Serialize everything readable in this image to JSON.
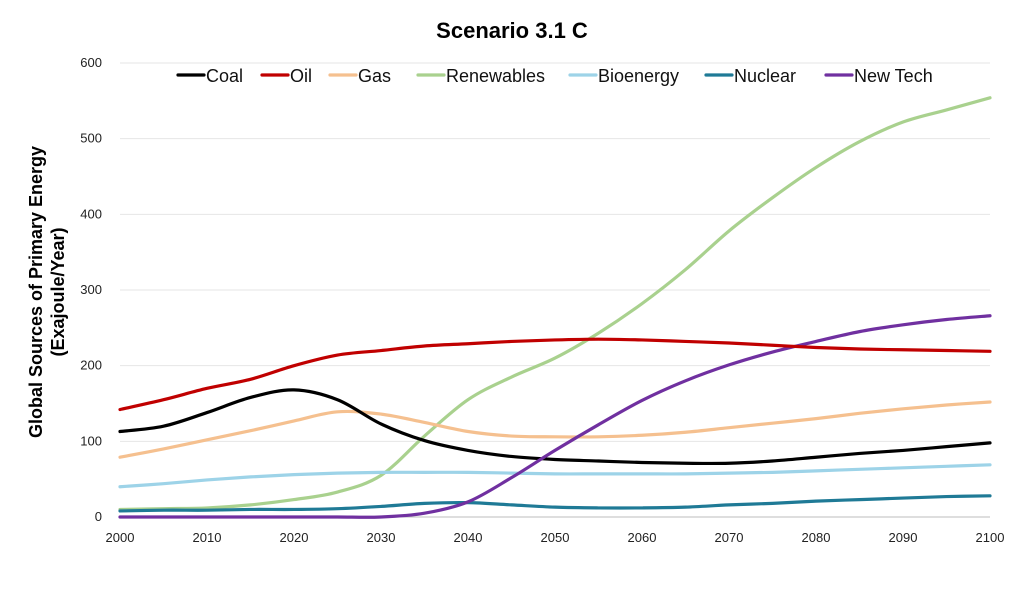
{
  "chart_data": {
    "type": "line",
    "title": "Scenario 3.1 C",
    "xlabel": "",
    "ylabel": [
      "Global Sources of Primary Energy",
      "(Exajoule/Year)"
    ],
    "x_ticks": [
      "2000",
      "2010",
      "2020",
      "2030",
      "2040",
      "2050",
      "2060",
      "2070",
      "2080",
      "2090",
      "2100"
    ],
    "y_ticks": [
      "0",
      "100",
      "200",
      "300",
      "400",
      "500",
      "600"
    ],
    "xlim": [
      2000,
      2100
    ],
    "ylim": [
      0,
      600
    ],
    "grid": "horizontal",
    "legend_position": "top",
    "x": [
      2000,
      2005,
      2010,
      2015,
      2020,
      2025,
      2030,
      2035,
      2040,
      2045,
      2050,
      2055,
      2060,
      2065,
      2070,
      2075,
      2080,
      2085,
      2090,
      2095,
      2100
    ],
    "series": [
      {
        "name": "Coal",
        "color": "#000000",
        "values": [
          113,
          120,
          138,
          158,
          168,
          155,
          123,
          101,
          88,
          80,
          76,
          74,
          72,
          71,
          71,
          74,
          79,
          84,
          88,
          93,
          98
        ]
      },
      {
        "name": "Oil",
        "color": "#c00000",
        "values": [
          142,
          155,
          170,
          182,
          200,
          214,
          220,
          226,
          229,
          232,
          234,
          235,
          234,
          232,
          230,
          227,
          224,
          222,
          221,
          220,
          219
        ]
      },
      {
        "name": "Gas",
        "color": "#f5c08f",
        "values": [
          79,
          90,
          102,
          114,
          127,
          139,
          136,
          125,
          113,
          107,
          106,
          106,
          108,
          112,
          118,
          124,
          130,
          137,
          143,
          148,
          152
        ]
      },
      {
        "name": "Renewables",
        "color": "#a9d18e",
        "values": [
          10,
          11,
          12,
          16,
          23,
          33,
          55,
          107,
          155,
          185,
          210,
          243,
          282,
          327,
          378,
          422,
          462,
          496,
          522,
          538,
          554
        ]
      },
      {
        "name": "Bioenergy",
        "color": "#9dd3e8",
        "values": [
          40,
          44,
          49,
          53,
          56,
          58,
          59,
          59,
          59,
          58,
          57,
          57,
          57,
          57,
          58,
          59,
          61,
          63,
          65,
          67,
          69
        ]
      },
      {
        "name": "Nuclear",
        "color": "#1f7a96",
        "values": [
          8,
          9,
          9,
          10,
          10,
          11,
          14,
          18,
          19,
          16,
          13,
          12,
          12,
          13,
          16,
          18,
          21,
          23,
          25,
          27,
          28
        ]
      },
      {
        "name": "New Tech",
        "color": "#7030a0",
        "values": [
          0,
          0,
          0,
          0,
          0,
          0,
          0,
          5,
          20,
          52,
          88,
          122,
          154,
          180,
          201,
          218,
          232,
          245,
          254,
          261,
          266
        ]
      }
    ]
  }
}
